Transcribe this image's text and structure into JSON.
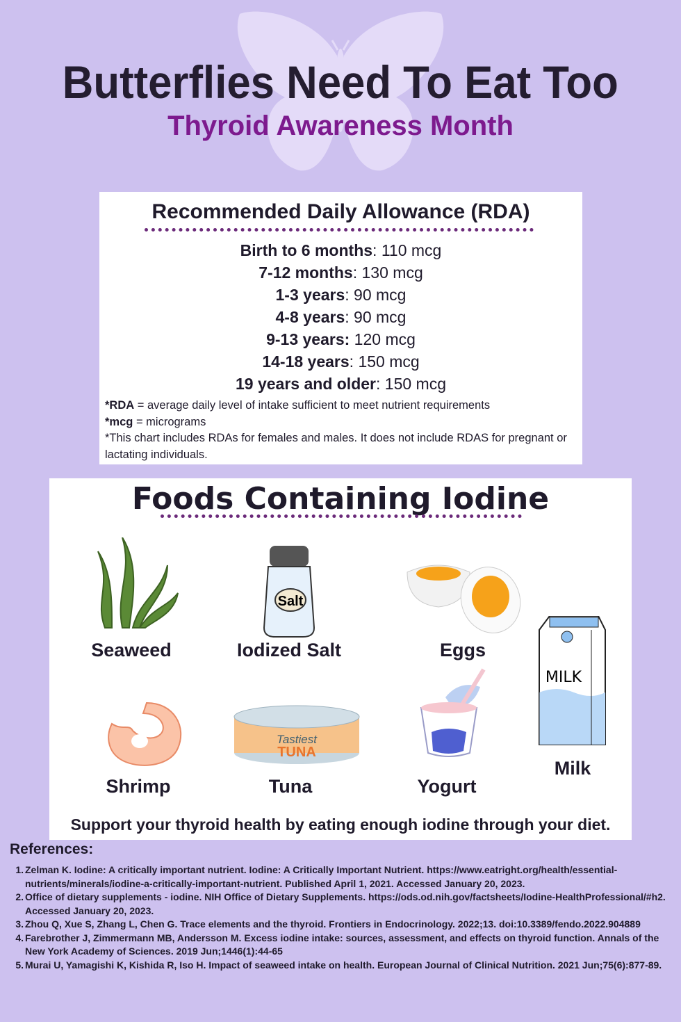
{
  "header": {
    "title": "Butterflies Need To Eat Too",
    "subtitle": "Thyroid Awareness Month"
  },
  "rda": {
    "title": "Recommended Daily Allowance (RDA)",
    "rows": [
      {
        "age": "Birth to 6 months",
        "amount": ": 110 mcg"
      },
      {
        "age": "7-12 months",
        "amount": ": 130 mcg"
      },
      {
        "age": "1-3 years",
        "amount": ": 90 mcg"
      },
      {
        "age": "4-8 years",
        "amount": ": 90 mcg"
      },
      {
        "age": "9-13 years:",
        "amount": " 120 mcg"
      },
      {
        "age": "14-18 years",
        "amount": ": 150 mcg"
      },
      {
        "age": "19 years and older",
        "amount": ": 150 mcg"
      }
    ],
    "notes": [
      {
        "term": "*RDA",
        "text": " = average daily level of intake sufficient to meet nutrient requirements"
      },
      {
        "term": "*mcg",
        "text": " = micrograms"
      },
      {
        "term": "",
        "text": "*This chart includes RDAs for females and males.  It does not include RDAS for pregnant or lactating individuals."
      }
    ]
  },
  "foods": {
    "title": "Foods Containing Iodine",
    "items": [
      {
        "label": "Seaweed",
        "icon": "seaweed-icon"
      },
      {
        "label": "Iodized Salt",
        "icon": "salt-shaker-icon",
        "icon_text": "Salt"
      },
      {
        "label": "Eggs",
        "icon": "egg-icon"
      },
      {
        "label": "Milk",
        "icon": "milk-carton-icon",
        "icon_text": "MILK"
      },
      {
        "label": "Shrimp",
        "icon": "shrimp-icon"
      },
      {
        "label": "Tuna",
        "icon": "tuna-can-icon",
        "icon_text": [
          "Tastiest",
          "TUNA"
        ]
      },
      {
        "label": "Yogurt",
        "icon": "yogurt-icon"
      }
    ],
    "tagline": "Support your thyroid health by eating enough iodine through your diet."
  },
  "references": {
    "title": "References:",
    "items": [
      "Zelman K. Iodine: A critically important nutrient. Iodine: A Critically Important Nutrient. https://www.eatright.org/health/essential-nutrients/minerals/iodine-a-critically-important-nutrient. Published April 1, 2021. Accessed January 20, 2023.",
      "Office of dietary supplements - iodine. NIH Office of Dietary Supplements. https://ods.od.nih.gov/factsheets/Iodine-HealthProfessional/#h2. Accessed January 20, 2023.",
      "Zhou Q, Xue S, Zhang L, Chen G. Trace elements and the thyroid. Frontiers in Endocrinology. 2022;13. doi:10.3389/fendo.2022.904889",
      "Farebrother J, Zimmermann MB, Andersson M. Excess iodine intake: sources, assessment, and effects on thyroid function. Annals of the New York Academy of Sciences. 2019 Jun;1446(1):44-65",
      "Murai U, Yamagishi K, Kishida R, Iso H. Impact of seaweed intake on health. European Journal of Clinical Nutrition. 2021 Jun;75(6):877-89."
    ]
  },
  "colors": {
    "background": "#cdc1ef",
    "title": "#241d30",
    "subtitle": "#7d1a8e",
    "divider": "#6b2a7a"
  }
}
